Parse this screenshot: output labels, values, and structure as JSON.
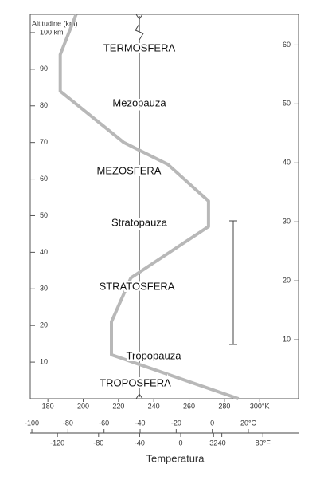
{
  "chart_data": {
    "type": "line",
    "y_label": "Altitudine (km)",
    "x_label": "Temperatura",
    "x": [
      288,
      216,
      216,
      227,
      271,
      271,
      248,
      223,
      187,
      187,
      196
    ],
    "series": [
      {
        "name": "Temperatura",
        "color": "#b8b8b8",
        "values": [
          0,
          12,
          21,
          33,
          47,
          54,
          64,
          70,
          84,
          94,
          105
        ]
      }
    ],
    "xlim": [
      170,
      322
    ],
    "xticks": [
      180,
      200,
      220,
      240,
      260,
      280,
      {
        "value": 300,
        "label": "300°K"
      }
    ],
    "ylim": [
      0,
      105
    ],
    "yticks": [
      10,
      20,
      30,
      40,
      50,
      60,
      70,
      80,
      90,
      {
        "value": 100,
        "label": "100 km"
      }
    ],
    "y2lim": [
      0,
      65.2
    ],
    "y2ticks": [
      10,
      20,
      30,
      40,
      50,
      60
    ],
    "x2lim": [
      -100.9,
      47.8
    ],
    "x2ticks": [
      -100,
      -80,
      -60,
      -40,
      -20,
      0,
      {
        "value": 20,
        "label": "20°C"
      }
    ],
    "x3lim": [
      -146.5,
      114.7
    ],
    "x3ticks": [
      -120,
      -80,
      -40,
      0,
      32,
      40,
      {
        "value": 80,
        "label": "80°F"
      }
    ],
    "annotations": [
      "TERMOSFERA",
      "Mezopauza",
      "MEZOSFERA",
      "Stratopauza",
      "STRATOSFERA",
      "Tropopauza",
      "TROPOSFERA"
    ]
  }
}
